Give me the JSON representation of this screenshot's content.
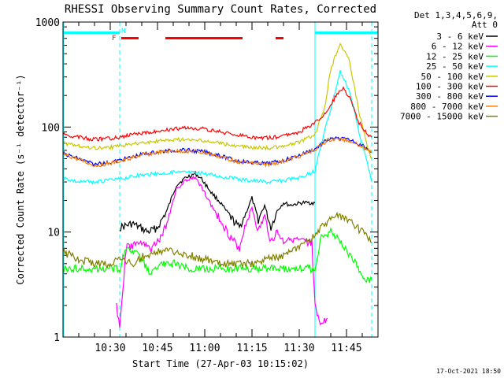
{
  "chart_data": {
    "type": "line",
    "title": "RHESSI Observing Summary Count Rates, Corrected",
    "xlabel": "Start Time (27-Apr-03 10:15:02)",
    "ylabel": "Corrected Count Rate (s⁻¹ detector⁻¹)",
    "y_scale": "log",
    "ylim": [
      1,
      1000
    ],
    "x_unit": "minutes after 10:15:02",
    "xlim": [
      0,
      100
    ],
    "y_ticks": [
      "1",
      "10",
      "100",
      "1000"
    ],
    "x_ticks": [
      {
        "t": 15,
        "label": "10:30"
      },
      {
        "t": 30,
        "label": "10:45"
      },
      {
        "t": 45,
        "label": "11:00"
      },
      {
        "t": 60,
        "label": "11:15"
      },
      {
        "t": 75,
        "label": "11:30"
      },
      {
        "t": 90,
        "label": "11:45"
      }
    ],
    "legend_header": [
      "Det 1,3,4,5,6,9,",
      "Att 0"
    ],
    "legend_position": "outside-right",
    "timestamp": "17-Oct-2021 18:50",
    "flags": {
      "night": {
        "label": "N",
        "color": "#00ffff",
        "intervals": [
          [
            0,
            18
          ],
          [
            80,
            100
          ]
        ]
      },
      "flare": {
        "label": "F",
        "color": "#ff0000",
        "intervals": [
          [
            18,
            24
          ],
          [
            32,
            57
          ],
          [
            67,
            70
          ]
        ]
      }
    },
    "boundaries": [
      {
        "t": 18,
        "style": "dashed"
      },
      {
        "t": 80,
        "style": "solid"
      },
      {
        "t": 98,
        "style": "dashed"
      }
    ],
    "series": [
      {
        "name": "3 - 6 keV",
        "color": "#000000",
        "points": [
          [
            18,
            11
          ],
          [
            22,
            12
          ],
          [
            27,
            10
          ],
          [
            30,
            11
          ],
          [
            33,
            16
          ],
          [
            36,
            28
          ],
          [
            39,
            33
          ],
          [
            42,
            36
          ],
          [
            44,
            32
          ],
          [
            47,
            24
          ],
          [
            50,
            19
          ],
          [
            53,
            14
          ],
          [
            56,
            11
          ],
          [
            58,
            15
          ],
          [
            60,
            21
          ],
          [
            62,
            13
          ],
          [
            64,
            18
          ],
          [
            66,
            11
          ],
          [
            68,
            16
          ],
          [
            70,
            19
          ],
          [
            72,
            18
          ],
          [
            76,
            19
          ],
          [
            80,
            19
          ]
        ]
      },
      {
        "name": "6 - 12 keV",
        "color": "#ff00ff",
        "points": [
          [
            17,
            2
          ],
          [
            18,
            1.2
          ],
          [
            20,
            7
          ],
          [
            24,
            8
          ],
          [
            28,
            7
          ],
          [
            30,
            8
          ],
          [
            33,
            12
          ],
          [
            36,
            26
          ],
          [
            39,
            31
          ],
          [
            42,
            33
          ],
          [
            44,
            27
          ],
          [
            47,
            18
          ],
          [
            50,
            13
          ],
          [
            53,
            9
          ],
          [
            56,
            7
          ],
          [
            58,
            12
          ],
          [
            60,
            17
          ],
          [
            62,
            10
          ],
          [
            64,
            14
          ],
          [
            66,
            8
          ],
          [
            68,
            10
          ],
          [
            70,
            8
          ],
          [
            72,
            9
          ],
          [
            75,
            8
          ],
          [
            79,
            8
          ],
          [
            80,
            2
          ],
          [
            82,
            1.3
          ],
          [
            84,
            1.5
          ]
        ]
      },
      {
        "name": "12 - 25 keV",
        "color": "#00ff00",
        "points": [
          [
            0,
            4.5
          ],
          [
            5,
            4.5
          ],
          [
            10,
            4.5
          ],
          [
            15,
            4.5
          ],
          [
            18,
            4.5
          ],
          [
            20,
            7
          ],
          [
            24,
            6
          ],
          [
            28,
            4
          ],
          [
            32,
            5
          ],
          [
            36,
            5
          ],
          [
            40,
            4.5
          ],
          [
            45,
            4.5
          ],
          [
            50,
            4.5
          ],
          [
            55,
            4.5
          ],
          [
            60,
            4.5
          ],
          [
            65,
            4.5
          ],
          [
            70,
            4.5
          ],
          [
            75,
            4.5
          ],
          [
            80,
            4.5
          ],
          [
            82,
            9
          ],
          [
            85,
            10
          ],
          [
            88,
            8
          ],
          [
            91,
            6
          ],
          [
            94,
            4.5
          ],
          [
            96,
            3.5
          ],
          [
            98,
            3.5
          ]
        ]
      },
      {
        "name": "25 - 50 keV",
        "color": "#00ffff",
        "points": [
          [
            0,
            33
          ],
          [
            5,
            30
          ],
          [
            10,
            30
          ],
          [
            15,
            31
          ],
          [
            20,
            33
          ],
          [
            25,
            35
          ],
          [
            30,
            36
          ],
          [
            35,
            37
          ],
          [
            40,
            37
          ],
          [
            45,
            36
          ],
          [
            50,
            34
          ],
          [
            55,
            32
          ],
          [
            60,
            31
          ],
          [
            65,
            30
          ],
          [
            70,
            31
          ],
          [
            75,
            33
          ],
          [
            80,
            38
          ],
          [
            82,
            70
          ],
          [
            85,
            150
          ],
          [
            88,
            340
          ],
          [
            91,
            220
          ],
          [
            94,
            90
          ],
          [
            97,
            40
          ],
          [
            98,
            30
          ]
        ]
      },
      {
        "name": "50 - 100 keV",
        "color": "#c8c800",
        "points": [
          [
            0,
            70
          ],
          [
            5,
            66
          ],
          [
            10,
            63
          ],
          [
            15,
            64
          ],
          [
            20,
            67
          ],
          [
            25,
            71
          ],
          [
            30,
            74
          ],
          [
            35,
            76
          ],
          [
            40,
            76
          ],
          [
            45,
            74
          ],
          [
            50,
            70
          ],
          [
            55,
            66
          ],
          [
            60,
            64
          ],
          [
            65,
            63
          ],
          [
            70,
            66
          ],
          [
            75,
            72
          ],
          [
            80,
            85
          ],
          [
            83,
            150
          ],
          [
            85,
            350
          ],
          [
            88,
            640
          ],
          [
            91,
            420
          ],
          [
            94,
            140
          ],
          [
            97,
            60
          ],
          [
            98,
            50
          ]
        ]
      },
      {
        "name": "100 - 300 keV",
        "color": "#ff0000",
        "points": [
          [
            0,
            85
          ],
          [
            5,
            80
          ],
          [
            10,
            76
          ],
          [
            15,
            78
          ],
          [
            20,
            82
          ],
          [
            25,
            88
          ],
          [
            30,
            92
          ],
          [
            35,
            96
          ],
          [
            40,
            98
          ],
          [
            45,
            96
          ],
          [
            50,
            90
          ],
          [
            55,
            84
          ],
          [
            60,
            80
          ],
          [
            65,
            79
          ],
          [
            70,
            82
          ],
          [
            75,
            90
          ],
          [
            80,
            110
          ],
          [
            84,
            140
          ],
          [
            87,
            210
          ],
          [
            89,
            230
          ],
          [
            91,
            190
          ],
          [
            94,
            110
          ],
          [
            97,
            85
          ],
          [
            98,
            80
          ]
        ]
      },
      {
        "name": "300 - 800 keV",
        "color": "#0000ff",
        "points": [
          [
            0,
            56
          ],
          [
            5,
            50
          ],
          [
            10,
            44
          ],
          [
            15,
            46
          ],
          [
            20,
            50
          ],
          [
            25,
            55
          ],
          [
            30,
            58
          ],
          [
            35,
            60
          ],
          [
            40,
            60
          ],
          [
            45,
            58
          ],
          [
            50,
            53
          ],
          [
            55,
            48
          ],
          [
            60,
            46
          ],
          [
            65,
            45
          ],
          [
            70,
            48
          ],
          [
            75,
            54
          ],
          [
            80,
            62
          ],
          [
            84,
            76
          ],
          [
            88,
            78
          ],
          [
            92,
            74
          ],
          [
            96,
            64
          ],
          [
            98,
            58
          ]
        ]
      },
      {
        "name": "800 - 7000 keV",
        "color": "#ff8000",
        "points": [
          [
            0,
            55
          ],
          [
            5,
            49
          ],
          [
            10,
            43
          ],
          [
            15,
            45
          ],
          [
            20,
            49
          ],
          [
            25,
            54
          ],
          [
            30,
            57
          ],
          [
            35,
            59
          ],
          [
            40,
            59
          ],
          [
            45,
            57
          ],
          [
            50,
            52
          ],
          [
            55,
            47
          ],
          [
            60,
            45
          ],
          [
            65,
            44
          ],
          [
            70,
            47
          ],
          [
            75,
            53
          ],
          [
            80,
            61
          ],
          [
            84,
            75
          ],
          [
            88,
            77
          ],
          [
            92,
            73
          ],
          [
            96,
            63
          ],
          [
            98,
            57
          ]
        ]
      },
      {
        "name": "7000 - 15000 keV",
        "color": "#808000",
        "points": [
          [
            0,
            6.5
          ],
          [
            5,
            5.5
          ],
          [
            10,
            5
          ],
          [
            15,
            5
          ],
          [
            18,
            5.5
          ],
          [
            22,
            5
          ],
          [
            26,
            6
          ],
          [
            30,
            6.5
          ],
          [
            35,
            6.5
          ],
          [
            40,
            6
          ],
          [
            45,
            5.5
          ],
          [
            50,
            5
          ],
          [
            55,
            5
          ],
          [
            60,
            5
          ],
          [
            65,
            5.5
          ],
          [
            70,
            6
          ],
          [
            75,
            7
          ],
          [
            80,
            9.5
          ],
          [
            83,
            12
          ],
          [
            86,
            14
          ],
          [
            89,
            14
          ],
          [
            92,
            12
          ],
          [
            95,
            10
          ],
          [
            98,
            8
          ]
        ]
      }
    ]
  }
}
